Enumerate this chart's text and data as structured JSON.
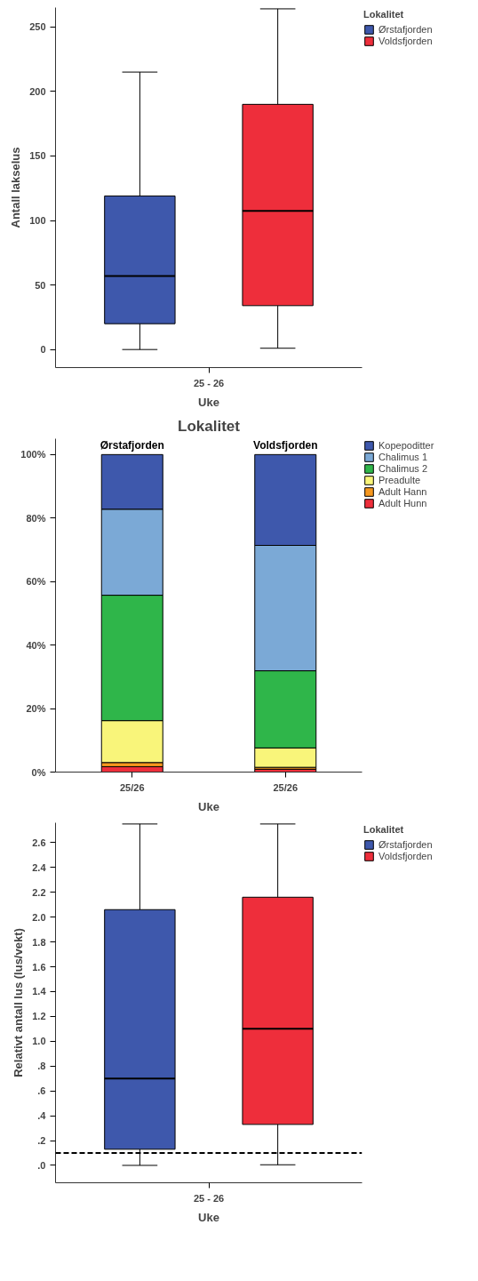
{
  "chart_data": [
    {
      "type": "box",
      "categories": [
        "25 - 26"
      ],
      "xlabel": "Uke",
      "ylabel": "Antall lakselus",
      "legend_title": "Lokalitet",
      "legend": "top right",
      "grid": false,
      "ylim": [
        -14,
        265
      ],
      "yticks": [
        0,
        50,
        100,
        150,
        200,
        250
      ],
      "series": [
        {
          "name": "Ørstafjorden",
          "color": "#3e58ac",
          "boxes": [
            {
              "low": 0,
              "q1": 20,
              "median": 57,
              "q3": 119,
              "high": 215
            }
          ]
        },
        {
          "name": "Voldsfjorden",
          "color": "#ee2e3b",
          "boxes": [
            {
              "low": 1,
              "q1": 34,
              "median": 107.5,
              "q3": 190,
              "high": 264
            }
          ]
        }
      ]
    },
    {
      "type": "bar",
      "stacked": true,
      "title": "Lokalitet",
      "xlabel": "Uke",
      "categories": [
        "25/26",
        "25/26"
      ],
      "annotations": [
        "Ørstafjorden",
        "Voldsfjorden"
      ],
      "grid": false,
      "legend": "top right",
      "ylim": [
        0,
        105
      ],
      "yticks": [
        {
          "value": 0,
          "label": "0%"
        },
        {
          "value": 20,
          "label": "20%"
        },
        {
          "value": 40,
          "label": "40%"
        },
        {
          "value": 60,
          "label": "60%"
        },
        {
          "value": 80,
          "label": "80%"
        },
        {
          "value": 100,
          "label": "100%"
        }
      ],
      "series": [
        {
          "name": "Adult Hunn",
          "color": "#ee2e3b",
          "values": [
            1.7,
            0.9
          ]
        },
        {
          "name": "Adult Hann",
          "color": "#f6971e",
          "values": [
            1.3,
            0.6
          ]
        },
        {
          "name": "Preadulte",
          "color": "#f9f57a",
          "values": [
            13.2,
            6.1
          ]
        },
        {
          "name": "Chalimus 2",
          "color": "#2fb64a",
          "values": [
            39.5,
            24.3
          ]
        },
        {
          "name": "Chalimus 1",
          "color": "#7ba9d6",
          "values": [
            27.1,
            39.5
          ]
        },
        {
          "name": "Kopepoditter",
          "color": "#3e58ac",
          "values": [
            17.2,
            28.6
          ]
        }
      ]
    },
    {
      "type": "box",
      "categories": [
        "25 - 26"
      ],
      "xlabel": "Uke",
      "ylabel": "Relativt antall lus (lus/vekt)",
      "legend_title": "Lokalitet",
      "legend": "top right",
      "grid": false,
      "ylim": [
        -0.14,
        2.76
      ],
      "yticks": [
        {
          "value": 0,
          "label": ".0"
        },
        {
          "value": 0.2,
          "label": ".2"
        },
        {
          "value": 0.4,
          "label": ".4"
        },
        {
          "value": 0.6,
          "label": ".6"
        },
        {
          "value": 0.8,
          "label": ".8"
        },
        {
          "value": 1.0,
          "label": "1.0"
        },
        {
          "value": 1.2,
          "label": "1.2"
        },
        {
          "value": 1.4,
          "label": "1.4"
        },
        {
          "value": 1.6,
          "label": "1.6"
        },
        {
          "value": 1.8,
          "label": "1.8"
        },
        {
          "value": 2.0,
          "label": "2.0"
        },
        {
          "value": 2.2,
          "label": "2.2"
        },
        {
          "value": 2.4,
          "label": "2.4"
        },
        {
          "value": 2.6,
          "label": "2.6"
        }
      ],
      "ref_lines": [
        {
          "axis": "y",
          "value": 0.1,
          "line_style": "dashed"
        }
      ],
      "series": [
        {
          "name": "Ørstafjorden",
          "color": "#3e58ac",
          "boxes": [
            {
              "low": 0,
              "q1": 0.13,
              "median": 0.7,
              "q3": 2.06,
              "high": 2.75
            }
          ]
        },
        {
          "name": "Voldsfjorden",
          "color": "#ee2e3b",
          "boxes": [
            {
              "low": 0.005,
              "q1": 0.33,
              "median": 1.1,
              "q3": 2.16,
              "high": 2.75
            }
          ]
        }
      ]
    }
  ]
}
